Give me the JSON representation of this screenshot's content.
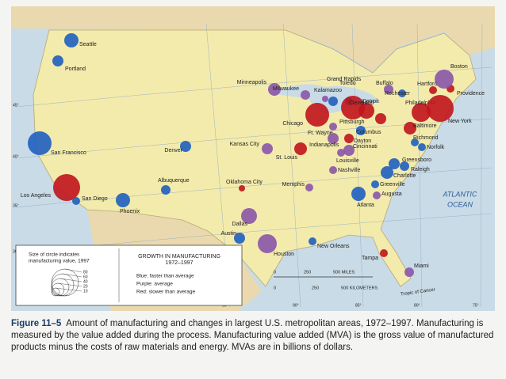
{
  "map": {
    "cities": [
      "Seattle",
      "Portland",
      "San Francisco",
      "Los Angeles",
      "San Diego",
      "Phoenix",
      "Denver",
      "Albuquerque",
      "Oklahoma City",
      "Dallas",
      "Austin",
      "Houston",
      "Kansas City",
      "St. Louis",
      "Memphis",
      "New Orleans",
      "Minneapolis",
      "Milwaukee",
      "Kalamazoo",
      "Grand Rapids",
      "Chicago",
      "Toledo",
      "Detroit",
      "Buffalo",
      "Ft. Wayne",
      "Indianapolis",
      "Columbus",
      "Cleveland",
      "Pittsburgh",
      "Dayton",
      "Cincinnati",
      "Louisville",
      "Nashville",
      "Atlanta",
      "Charlotte",
      "Greensboro",
      "Raleigh",
      "Richmond",
      "Norfolk",
      "Baltimore",
      "Philadelphia",
      "New York",
      "Hartford",
      "Providence",
      "Boston",
      "Rochester",
      "Greenville",
      "Augusta",
      "Tampa",
      "Miami"
    ],
    "ocean_label": [
      "ATLANTIC",
      "OCEAN"
    ],
    "latitudes": [
      "45°",
      "40°",
      "35°",
      "30°"
    ],
    "longitudes": [
      "95°",
      "90°",
      "85°",
      "80°",
      "75°"
    ],
    "tropic": "Tropic of Cancer",
    "legend": {
      "size_title": [
        "Size of circle indicates",
        "manufacturing value, 1997"
      ],
      "size_steps": [
        "80",
        "60",
        "40",
        "20",
        "10"
      ],
      "growth_title": [
        "GROWTH IN MANUFACTURING",
        "1972–1997"
      ],
      "growth_items": [
        "Blue: faster than average",
        "Purple: average",
        "Red: slower than average"
      ]
    },
    "scale": {
      "miles": [
        "0",
        "250",
        "500 MILES"
      ],
      "kilometers": [
        "0",
        "250",
        "500 KILOMETERS"
      ]
    }
  },
  "caption": {
    "figure": "Figure 11–5",
    "text": "Amount of manufacturing and changes in largest U.S. metropolitan areas, 1972–1997. Manufacturing is measured by the value added during the process. Manufacturing value added (MVA) is the gross value of manufactured products minus the costs of raw materials and energy. MVAs are in billions of dollars."
  }
}
